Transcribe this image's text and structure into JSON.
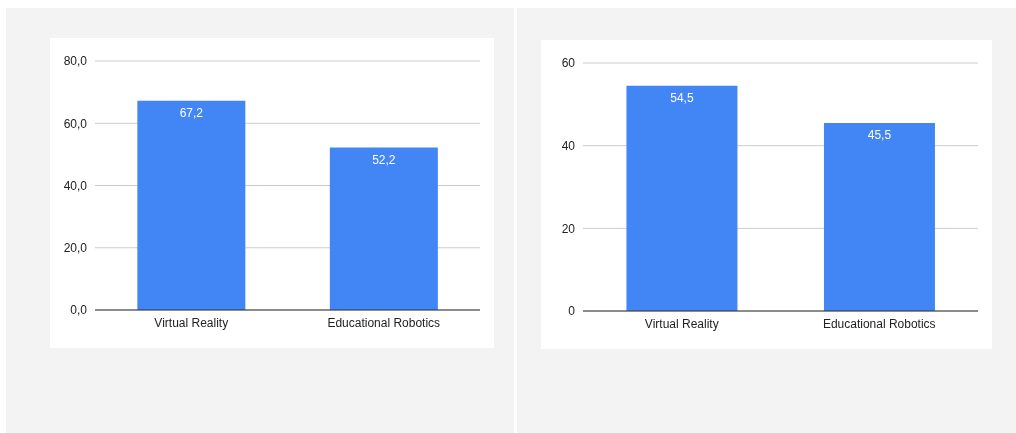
{
  "chart_data": [
    {
      "type": "bar",
      "categories": [
        "Virtual Reality",
        "Educational Robotics"
      ],
      "values": [
        67.2,
        52.2
      ],
      "color": "#4285f4",
      "value_labels": [
        "67,2",
        "52,2"
      ],
      "ylim": [
        0,
        80
      ],
      "yticks": [
        {
          "value": 0,
          "label": "0,0"
        },
        {
          "value": 20,
          "label": "20,0"
        },
        {
          "value": 40,
          "label": "40,0"
        },
        {
          "value": 60,
          "label": "60,0"
        },
        {
          "value": 80,
          "label": "80,0"
        }
      ],
      "grid": "y"
    },
    {
      "type": "bar",
      "categories": [
        "Virtual Reality",
        "Educational Robotics"
      ],
      "values": [
        54.5,
        45.5
      ],
      "color": "#4285f4",
      "value_labels": [
        "54,5",
        "45,5"
      ],
      "ylim": [
        0,
        60
      ],
      "yticks": [
        0,
        20,
        40,
        60
      ],
      "grid": "y"
    }
  ]
}
